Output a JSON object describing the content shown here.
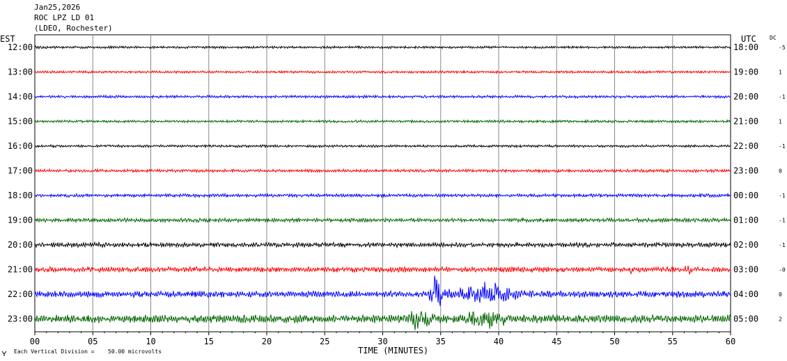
{
  "header": {
    "date": "Jan25,2026",
    "station": "ROC LPZ LD 01",
    "network": "(LDEO, Rochester)"
  },
  "chart_data": {
    "type": "line",
    "left_axis_label": "EST",
    "right_axis_label": "UTC",
    "dc_label": "DC",
    "xlabel": "TIME (MINUTES)",
    "xlim": [
      0,
      60
    ],
    "x_ticks": [
      "00",
      "05",
      "10",
      "15",
      "20",
      "25",
      "30",
      "35",
      "40",
      "45",
      "50",
      "55",
      "60"
    ],
    "footer_left": "Each Vertical Division =",
    "footer_right": "50.00 microvolts",
    "footer_icon": "logo-mark-icon",
    "trace_colors": [
      "#000000",
      "#ff0000",
      "#0000ff",
      "#006400"
    ],
    "traces": [
      {
        "est": "12:00",
        "utc": "18:00",
        "dc": "-5",
        "noise": 1.6,
        "events": []
      },
      {
        "est": "13:00",
        "utc": "19:00",
        "dc": "1",
        "noise": 1.6,
        "events": []
      },
      {
        "est": "14:00",
        "utc": "20:00",
        "dc": "-1",
        "noise": 1.8,
        "events": []
      },
      {
        "est": "15:00",
        "utc": "21:00",
        "dc": "1",
        "noise": 1.7,
        "events": [
          {
            "start": 48.6,
            "end": 49.0,
            "amp": 5
          }
        ]
      },
      {
        "est": "16:00",
        "utc": "22:00",
        "dc": "-1",
        "noise": 1.7,
        "events": []
      },
      {
        "est": "17:00",
        "utc": "23:00",
        "dc": "0",
        "noise": 2.0,
        "events": []
      },
      {
        "est": "18:00",
        "utc": "00:00",
        "dc": "-1",
        "noise": 2.2,
        "events": []
      },
      {
        "est": "19:00",
        "utc": "01:00",
        "dc": "-1",
        "noise": 2.6,
        "events": []
      },
      {
        "est": "20:00",
        "utc": "02:00",
        "dc": "-1",
        "noise": 3.0,
        "events": []
      },
      {
        "est": "21:00",
        "utc": "03:00",
        "dc": "-0",
        "noise": 3.6,
        "events": [
          {
            "start": 51.2,
            "end": 52.5,
            "amp": 7
          },
          {
            "start": 56.0,
            "end": 57.0,
            "amp": 6
          }
        ]
      },
      {
        "est": "22:00",
        "utc": "04:00",
        "dc": "0",
        "noise": 4.2,
        "events": [
          {
            "start": 34.0,
            "end": 35.8,
            "amp": 22
          },
          {
            "start": 35.8,
            "end": 46.0,
            "amp": 13
          }
        ]
      },
      {
        "est": "23:00",
        "utc": "05:00",
        "dc": "2",
        "noise": 5.5,
        "events": [
          {
            "start": 32.0,
            "end": 36.0,
            "amp": 14
          },
          {
            "start": 36.0,
            "end": 44.5,
            "amp": 11
          }
        ]
      }
    ]
  }
}
